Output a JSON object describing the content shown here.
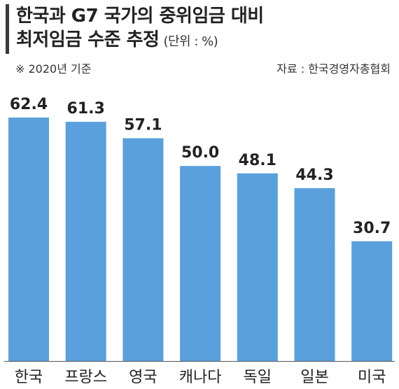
{
  "header": {
    "title_line1": "한국과 G7 국가의 중위임금 대비",
    "title_line2": "최저임금 수준 추정",
    "unit": "(단위 : %)",
    "note": "※ 2020년 기준",
    "source": "자료 : 한국경영자총협회"
  },
  "colors": {
    "bar": "#5aa0dc",
    "text": "#222222",
    "title_bar": "#3a3a3a"
  },
  "chart_data": {
    "type": "bar",
    "title": "한국과 G7 국가의 중위임금 대비 최저임금 수준 추정",
    "unit": "%",
    "categories": [
      "한국",
      "프랑스",
      "영국",
      "캐나다",
      "독일",
      "일본",
      "미국"
    ],
    "values": [
      62.4,
      61.3,
      57.1,
      50.0,
      48.1,
      44.3,
      30.7
    ],
    "value_labels": [
      "62.4",
      "61.3",
      "57.1",
      "50.0",
      "48.1",
      "44.3",
      "30.7"
    ],
    "ylim": [
      0,
      62.4
    ],
    "grid": false,
    "legend": "none"
  }
}
